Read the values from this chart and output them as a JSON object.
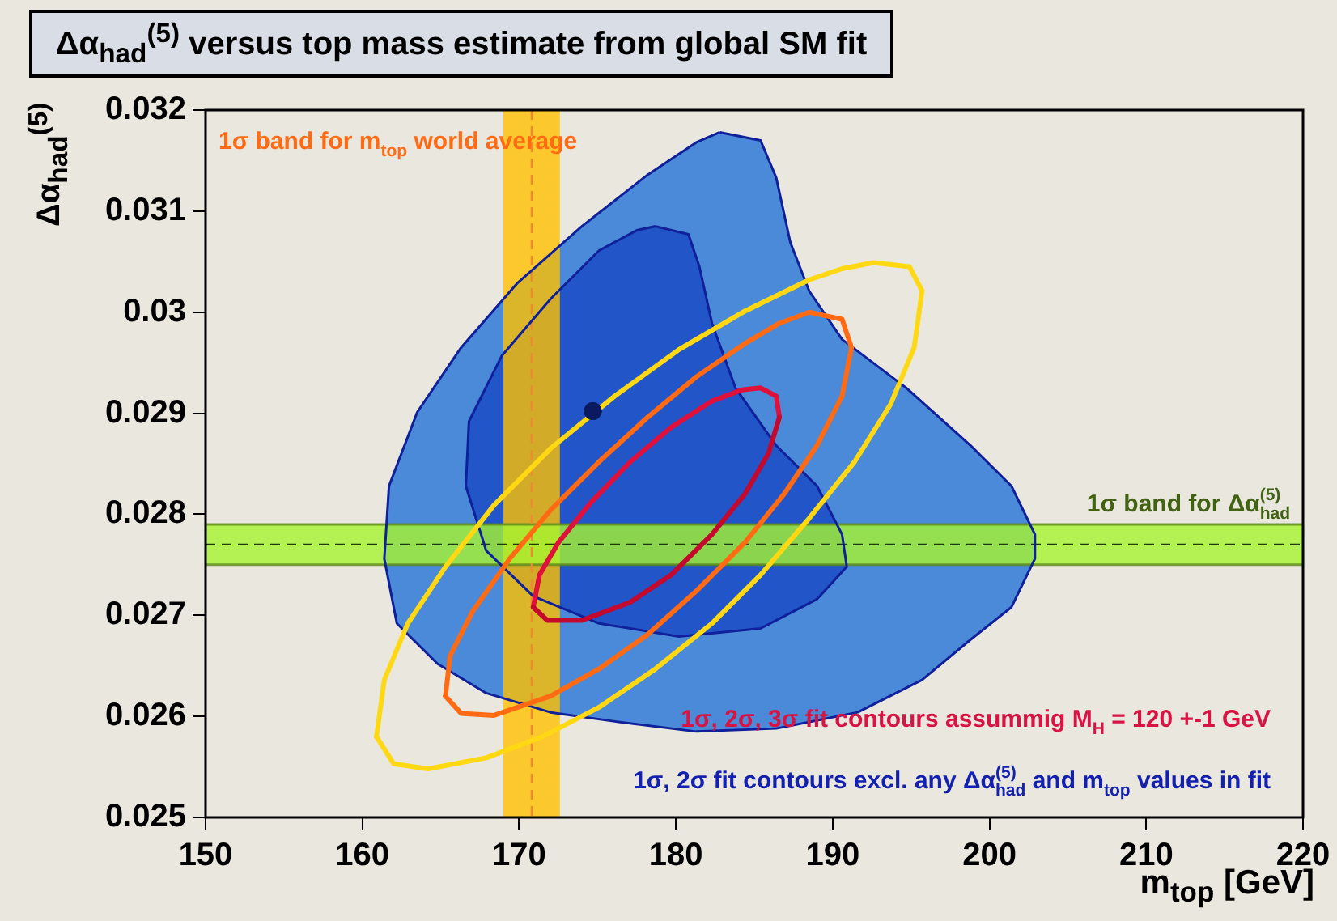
{
  "chart_data": {
    "type": "line",
    "title": "Δα$_{had}$$^{(5)}$ versus top mass estimate from global SM fit",
    "xlabel": "m$_{top}$ [GeV]",
    "ylabel": "Δα$_{had}$$^{(5)}$",
    "xlim": [
      150,
      220
    ],
    "xticks": [
      150,
      160,
      170,
      180,
      190,
      200,
      210,
      220
    ],
    "ylim": [
      0.025,
      0.032
    ],
    "yticks": [
      0.025,
      0.026,
      0.027,
      0.028,
      0.029,
      0.03,
      0.031,
      0.032
    ],
    "grid": false,
    "legend": false,
    "series": [
      {
        "type": "area",
        "color": "#4a8ad8",
        "x": [
          182.8,
          185.4,
          186.4,
          187.3,
          188.5,
          190.6,
          194.7,
          198.8,
          201.4,
          202.9,
          202.9,
          201.4,
          198.8,
          195.7,
          191.6,
          186.4,
          181.3,
          176.1,
          172.0,
          167.9,
          164.8,
          162.2,
          161.4,
          161.7,
          163.5,
          166.3,
          169.9,
          174.0,
          178.2,
          181.3,
          182.8
        ],
        "values": [
          0.03178,
          0.0317,
          0.03133,
          0.03069,
          0.03021,
          0.02973,
          0.02925,
          0.02868,
          0.02828,
          0.0278,
          0.02756,
          0.02708,
          0.02676,
          0.02636,
          0.02604,
          0.02588,
          0.02585,
          0.02595,
          0.02604,
          0.02623,
          0.02652,
          0.02692,
          0.02756,
          0.02828,
          0.02901,
          0.02965,
          0.03029,
          0.03085,
          0.03136,
          0.03168,
          0.03178
        ]
      },
      {
        "type": "area",
        "color": "#2255c8",
        "x": [
          178.7,
          180.8,
          181.5,
          182.3,
          183.8,
          186.4,
          189.0,
          190.6,
          190.9,
          189.0,
          185.4,
          180.2,
          175.1,
          170.9,
          167.9,
          166.6,
          166.8,
          168.9,
          172.0,
          175.1,
          177.5,
          178.7
        ],
        "values": [
          0.03085,
          0.03077,
          0.03045,
          0.02989,
          0.02925,
          0.02868,
          0.02828,
          0.0278,
          0.02748,
          0.02716,
          0.02687,
          0.02679,
          0.02692,
          0.02719,
          0.02764,
          0.02828,
          0.02892,
          0.02957,
          0.03013,
          0.03061,
          0.03081,
          0.03085
        ]
      },
      {
        "type": "line",
        "color": "#ffd814",
        "x": [
          160.9,
          161.4,
          162.9,
          165.3,
          168.4,
          172.0,
          176.1,
          180.2,
          184.4,
          188.5,
          190.6,
          192.6,
          194.9,
          195.7
        ],
        "values": [
          0.0258,
          0.02636,
          0.02692,
          0.02748,
          0.02809,
          0.02865,
          0.02917,
          0.02963,
          0.03001,
          0.03032,
          0.03043,
          0.03049,
          0.03045,
          0.03021
        ]
      },
      {
        "type": "line",
        "color": "#ffd814",
        "x": [
          160.9,
          162.0,
          164.2,
          167.9,
          171.5,
          175.1,
          178.7,
          182.3,
          185.4,
          188.5,
          191.4,
          193.7,
          195.2,
          195.7
        ],
        "values": [
          0.0258,
          0.02553,
          0.02548,
          0.02559,
          0.0258,
          0.02609,
          0.02647,
          0.02692,
          0.0274,
          0.02796,
          0.02852,
          0.02909,
          0.02965,
          0.03021
        ]
      },
      {
        "type": "line",
        "color": "#ff6a13",
        "x": [
          165.3,
          165.6,
          167.0,
          169.4,
          172.0,
          175.1,
          178.2,
          181.3,
          184.4,
          186.6,
          188.5,
          190.6,
          191.2
        ],
        "values": [
          0.0262,
          0.0266,
          0.02703,
          0.02756,
          0.02804,
          0.02852,
          0.02896,
          0.02936,
          0.02969,
          0.02989,
          0.03,
          0.02993,
          0.02965
        ]
      },
      {
        "type": "line",
        "color": "#ff6a13",
        "x": [
          165.3,
          166.3,
          168.4,
          172.0,
          175.1,
          178.2,
          181.3,
          184.4,
          186.9,
          189.0,
          190.6,
          191.2
        ],
        "values": [
          0.0262,
          0.02603,
          0.02601,
          0.0262,
          0.02647,
          0.02681,
          0.02724,
          0.02772,
          0.0282,
          0.02868,
          0.02917,
          0.02965
        ]
      },
      {
        "type": "line",
        "color": "#e0103a",
        "x": [
          170.9,
          171.3,
          172.5,
          174.6,
          177.1,
          179.7,
          182.3,
          184.2,
          185.4,
          186.4,
          186.6
        ],
        "values": [
          0.02708,
          0.0274,
          0.02772,
          0.02812,
          0.02852,
          0.02886,
          0.02912,
          0.02923,
          0.02925,
          0.02917,
          0.02896
        ]
      },
      {
        "type": "line",
        "color": "#c4082e",
        "x": [
          170.9,
          171.8,
          174.0,
          177.1,
          179.7,
          182.3,
          184.4,
          185.9,
          186.6
        ],
        "values": [
          0.02708,
          0.02695,
          0.02695,
          0.02713,
          0.0274,
          0.0278,
          0.0282,
          0.0286,
          0.02896
        ]
      },
      {
        "type": "scatter",
        "marker": "circle",
        "color": "#0a1a60",
        "x": [
          174.7
        ],
        "values": [
          0.02902
        ]
      }
    ],
    "bands": [
      {
        "axis": "x",
        "from": 169.0,
        "to": 172.6,
        "color": "#ffc000",
        "label": "1σ band for m$_{top}$ world average"
      },
      {
        "axis": "y",
        "from": 0.0275,
        "to": 0.0279,
        "color": "#a6f530",
        "label": "1σ band for Δα$_{had}$$^{(5)}$"
      }
    ],
    "ref_lines": [
      {
        "axis": "x",
        "value": 170.8,
        "color": "#f08a30",
        "line_style": "dashed"
      },
      {
        "axis": "y",
        "value": 0.0277,
        "color": "#1a3a00",
        "line_style": "dashed"
      }
    ],
    "annotations": [
      "1σ, 2σ, 3σ fit contours assummig M$_{H}$ = 120 +-1 GeV",
      "1σ, 2σ fit contours excl. any Δα$_{had}$$^{(5)}$ and m$_{top}$ values in fit"
    ]
  }
}
